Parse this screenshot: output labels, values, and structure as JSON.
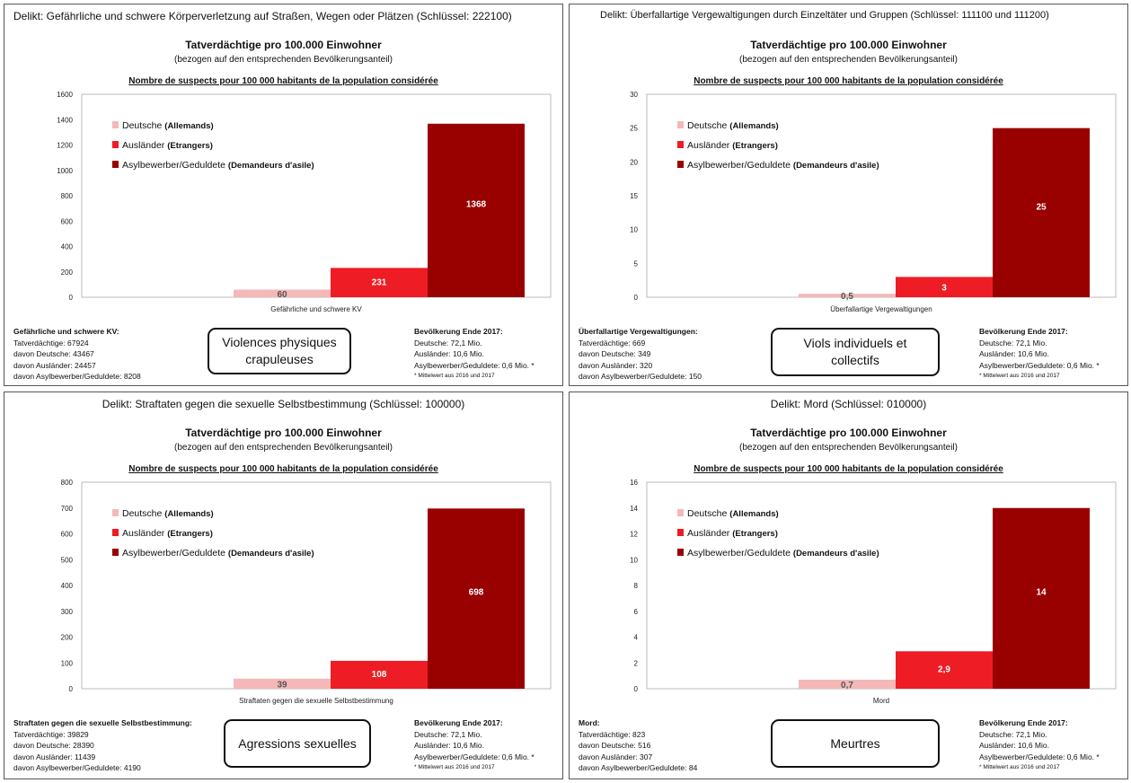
{
  "legend": [
    {
      "de": "Deutsche",
      "fr": "(Allemands)",
      "color": "#f4b8b8"
    },
    {
      "de": "Ausländer",
      "fr": "(Etrangers)",
      "color": "#ee1c24"
    },
    {
      "de": "Asylbewerber/Geduldete",
      "fr": "(Demandeurs d'asile)",
      "color": "#990000"
    }
  ],
  "panels": [
    {
      "title": "Delikt: Gefährliche und schwere Körperverletzung auf Straßen, Wegen oder Plätzen (Schlüssel: 222100)",
      "heading": "Tatverdächtige pro 100.000 Einwohner",
      "subheading": "(bezogen auf den entsprechenden Bevölkerungsanteil)",
      "french_heading": "Nombre de suspects pour 100 000 habitants de la population considérée",
      "stats_title": "Gefährliche und schwere KV:",
      "stats_lines": [
        "Tatverdächtige: 67924",
        "davon Deutsche: 43467",
        "davon Ausländer: 24457",
        "davon Asylbewerber/Geduldete: 8208"
      ],
      "pop_title": "Bevölkerung Ende 2017:",
      "pop_lines": [
        "Deutsche: 72,1 Mio.",
        "Ausländer: 10,6 Mio.",
        "Asylbewerber/Geduldete: 0,6 Mio. *"
      ],
      "pop_note": "* Mittelwert aus 2016 und 2017",
      "french_label_lines": [
        "Violences physiques",
        "crapuleuses"
      ]
    },
    {
      "title": "Delikt: Überfallartige Vergewaltigungen durch Einzeltäter und Gruppen (Schlüssel: 111100 und 111200)",
      "heading": "Tatverdächtige pro 100.000 Einwohner",
      "subheading": "(bezogen auf den entsprechenden Bevölkerungsanteil)",
      "french_heading": "Nombre de suspects pour 100 000 habitants de la population considérée",
      "stats_title": "Überfallartige Vergewaltigungen:",
      "stats_lines": [
        "Tatverdächtige: 669",
        "davon Deutsche: 349",
        "davon Ausländer: 320",
        "davon Asylbewerber/Geduldete: 150"
      ],
      "pop_title": "Bevölkerung Ende 2017:",
      "pop_lines": [
        "Deutsche: 72,1 Mio.",
        "Ausländer: 10,6 Mio.",
        "Asylbewerber/Geduldete: 0,6 Mio. *"
      ],
      "pop_note": "* Mittelwert aus 2016 und 2017",
      "french_label_lines": [
        "Viols individuels et",
        "collectifs"
      ]
    },
    {
      "title": "Delikt: Straftaten gegen die sexuelle Selbstbestimmung (Schlüssel: 100000)",
      "heading": "Tatverdächtige pro 100.000 Einwohner",
      "subheading": "(bezogen auf den entsprechenden Bevölkerungsanteil)",
      "french_heading": "Nombre de suspects pour 100 000 habitants de la population considérée",
      "stats_title": "Straftaten gegen die sexuelle Selbstbestimmung:",
      "stats_lines": [
        "Tatverdächtige: 39829",
        "davon Deutsche: 28390",
        "davon Ausländer: 11439",
        "davon Asylbewerber/Geduldete: 4190"
      ],
      "pop_title": "Bevölkerung Ende 2017:",
      "pop_lines": [
        "Deutsche: 72,1 Mio.",
        "Ausländer: 10,6 Mio.",
        "Asylbewerber/Geduldete: 0,6 Mio. *"
      ],
      "pop_note": "* Mittelwert aus 2016 und 2017",
      "french_label_lines": [
        "Agressions sexuelles"
      ]
    },
    {
      "title": "Delikt: Mord (Schlüssel: 010000)",
      "heading": "Tatverdächtige pro 100.000 Einwohner",
      "subheading": "(bezogen auf den entsprechenden Bevölkerungsanteil)",
      "french_heading": "Nombre de suspects pour 100 000 habitants de la population considérée",
      "stats_title": "Mord:",
      "stats_lines": [
        "Tatverdächtige: 823",
        "davon Deutsche: 516",
        "davon Ausländer: 307",
        "davon Asylbewerber/Geduldete: 84"
      ],
      "pop_title": "Bevölkerung Ende 2017:",
      "pop_lines": [
        "Deutsche: 72,1 Mio.",
        "Ausländer: 10,6 Mio.",
        "Asylbewerber/Geduldete: 0,6 Mio. *"
      ],
      "pop_note": "* Mittelwert aus 2016 und 2017",
      "french_label_lines": [
        "Meurtres"
      ]
    }
  ],
  "chart_data": [
    {
      "type": "bar",
      "categories": [
        "Gefährliche und schwere KV"
      ],
      "series": [
        {
          "name": "Deutsche (Allemands)",
          "values": [
            60
          ],
          "label": "60"
        },
        {
          "name": "Ausländer (Etrangers)",
          "values": [
            231
          ],
          "label": "231"
        },
        {
          "name": "Asylbewerber/Geduldete (Demandeurs d'asile)",
          "values": [
            1368
          ],
          "label": "1368"
        }
      ],
      "ylim": [
        0,
        1600
      ],
      "yticks": [
        "0",
        "200",
        "400",
        "600",
        "800",
        "1000",
        "1200",
        "1400",
        "1600"
      ],
      "legend": "top-left",
      "grid": false
    },
    {
      "type": "bar",
      "categories": [
        "Überfallartige Vergewaltigungen"
      ],
      "series": [
        {
          "name": "Deutsche (Allemands)",
          "values": [
            0.5
          ],
          "label": "0,5"
        },
        {
          "name": "Ausländer (Etrangers)",
          "values": [
            3
          ],
          "label": "3"
        },
        {
          "name": "Asylbewerber/Geduldete (Demandeurs d'asile)",
          "values": [
            25
          ],
          "label": "25"
        }
      ],
      "ylim": [
        0,
        30
      ],
      "yticks": [
        "0",
        "5",
        "10",
        "15",
        "20",
        "25",
        "30"
      ],
      "legend": "top-left",
      "grid": false
    },
    {
      "type": "bar",
      "categories": [
        "Straftaten gegen die sexuelle Selbstbestimmung"
      ],
      "series": [
        {
          "name": "Deutsche (Allemands)",
          "values": [
            39
          ],
          "label": "39"
        },
        {
          "name": "Ausländer (Etrangers)",
          "values": [
            108
          ],
          "label": "108"
        },
        {
          "name": "Asylbewerber/Geduldete (Demandeurs d'asile)",
          "values": [
            698
          ],
          "label": "698"
        }
      ],
      "ylim": [
        0,
        800
      ],
      "yticks": [
        "0",
        "100",
        "200",
        "300",
        "400",
        "500",
        "600",
        "700",
        "800"
      ],
      "legend": "top-left",
      "grid": false
    },
    {
      "type": "bar",
      "categories": [
        "Mord"
      ],
      "series": [
        {
          "name": "Deutsche (Allemands)",
          "values": [
            0.7
          ],
          "label": "0,7"
        },
        {
          "name": "Ausländer (Etrangers)",
          "values": [
            2.9
          ],
          "label": "2,9"
        },
        {
          "name": "Asylbewerber/Geduldete (Demandeurs d'asile)",
          "values": [
            14
          ],
          "label": "14"
        }
      ],
      "ylim": [
        0,
        16
      ],
      "yticks": [
        "0",
        "2",
        "4",
        "6",
        "8",
        "10",
        "12",
        "14",
        "16"
      ],
      "legend": "top-left",
      "grid": false
    }
  ]
}
